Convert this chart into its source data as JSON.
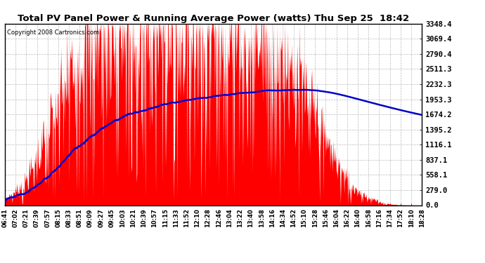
{
  "title": "Total PV Panel Power & Running Average Power (watts) Thu Sep 25  18:42",
  "copyright": "Copyright 2008 Cartronics.com",
  "background_color": "#ffffff",
  "plot_bg_color": "#ffffff",
  "grid_color": "#bbbbbb",
  "bar_color": "#ff0000",
  "line_color": "#0000cc",
  "yticks": [
    0.0,
    279.0,
    558.1,
    837.1,
    1116.1,
    1395.2,
    1674.2,
    1953.3,
    2232.3,
    2511.3,
    2790.4,
    3069.4,
    3348.4
  ],
  "xtick_labels": [
    "06:41",
    "07:02",
    "07:21",
    "07:39",
    "07:57",
    "08:15",
    "08:33",
    "08:51",
    "09:09",
    "09:27",
    "09:45",
    "10:03",
    "10:21",
    "10:39",
    "10:57",
    "11:15",
    "11:33",
    "11:52",
    "12:10",
    "12:28",
    "12:46",
    "13:04",
    "13:22",
    "13:40",
    "13:58",
    "14:16",
    "14:34",
    "14:52",
    "15:10",
    "15:28",
    "15:46",
    "16:04",
    "16:22",
    "16:40",
    "16:58",
    "17:16",
    "17:34",
    "17:52",
    "18:10",
    "18:28"
  ],
  "ymax": 3348.4,
  "ymin": 0.0
}
